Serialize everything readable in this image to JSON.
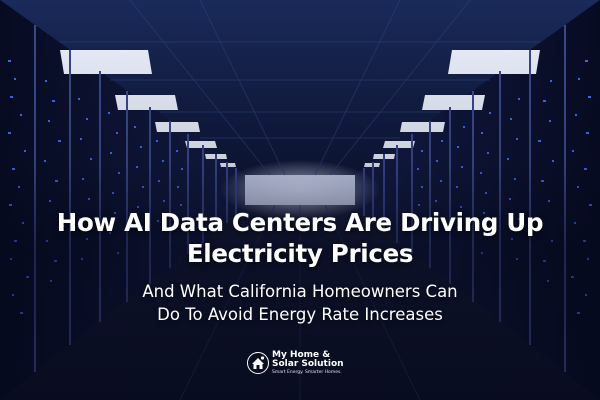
{
  "headline": {
    "line1": "How AI Data Centers Are Driving Up",
    "line2": "Electricity Prices"
  },
  "subheadline": {
    "line1": "And What California Homeowners Can",
    "line2": "Do To Avoid Energy Rate Increases"
  },
  "logo": {
    "icon": "house-sun-icon",
    "name_line1": "My Home &",
    "name_line2": "Solar Solution",
    "tagline": "Smart Energy. Smarter Homes."
  },
  "colors": {
    "background": "#070a1e",
    "server_led": "#3f6cff",
    "ceiling_light": "#eef3ff",
    "text": "#ffffff"
  }
}
